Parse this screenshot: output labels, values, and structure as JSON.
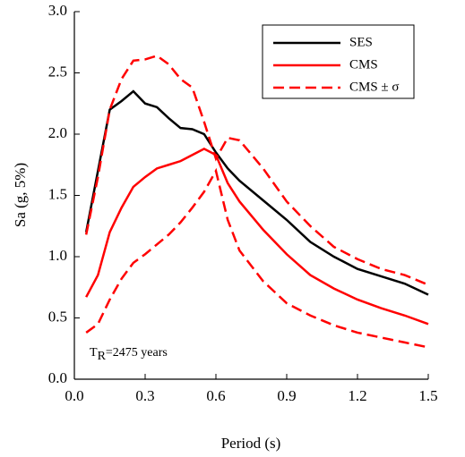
{
  "chart_data": {
    "type": "line",
    "xlabel": "Period (s)",
    "ylabel": "Sa (g, 5%)",
    "annotation": {
      "text": "T",
      "subscript": "R",
      "suffix": "=2475 years"
    },
    "x": [
      0.05,
      0.1,
      0.15,
      0.2,
      0.25,
      0.3,
      0.35,
      0.4,
      0.45,
      0.5,
      0.55,
      0.6,
      0.65,
      0.7,
      0.8,
      0.9,
      1.0,
      1.1,
      1.2,
      1.3,
      1.4,
      1.5
    ],
    "series": [
      {
        "name": "SES",
        "color": "#000000",
        "dashed": false,
        "values": [
          1.2,
          1.7,
          2.2,
          2.27,
          2.35,
          2.25,
          2.22,
          2.13,
          2.05,
          2.04,
          2.0,
          1.85,
          1.72,
          1.62,
          1.46,
          1.3,
          1.12,
          1.0,
          0.9,
          0.84,
          0.78,
          0.69
        ]
      },
      {
        "name": "CMS",
        "color": "#ff0000",
        "dashed": false,
        "values": [
          0.67,
          0.85,
          1.2,
          1.4,
          1.57,
          1.65,
          1.72,
          1.75,
          1.78,
          1.83,
          1.88,
          1.83,
          1.6,
          1.45,
          1.22,
          1.02,
          0.85,
          0.74,
          0.65,
          0.58,
          0.52,
          0.45
        ]
      },
      {
        "name": "CMS ± σ",
        "color": "#ff0000",
        "dashed": true,
        "values": [
          1.18,
          1.65,
          2.2,
          2.45,
          2.6,
          2.61,
          2.64,
          2.57,
          2.45,
          2.38,
          2.1,
          1.8,
          1.97,
          1.95,
          1.72,
          1.45,
          1.25,
          1.08,
          0.98,
          0.9,
          0.85,
          0.77
        ],
        "lower": [
          0.38,
          0.45,
          0.65,
          0.82,
          0.95,
          1.02,
          1.1,
          1.18,
          1.28,
          1.4,
          1.53,
          1.7,
          1.3,
          1.05,
          0.8,
          0.62,
          0.52,
          0.44,
          0.38,
          0.34,
          0.3,
          0.26
        ]
      }
    ],
    "xlim": [
      0,
      1.5
    ],
    "ylim": [
      0,
      3
    ],
    "xticks": [
      {
        "value": 0,
        "label": "0.0"
      },
      0.3,
      0.6,
      0.9,
      1.2,
      1.5
    ],
    "yticks": [
      {
        "value": 0,
        "label": "0.0"
      },
      0.5,
      {
        "value": 1,
        "label": "1.0"
      },
      1.5,
      {
        "value": 2,
        "label": "2.0"
      },
      2.5,
      {
        "value": 3,
        "label": "3.0"
      }
    ],
    "legend": "upper right"
  }
}
